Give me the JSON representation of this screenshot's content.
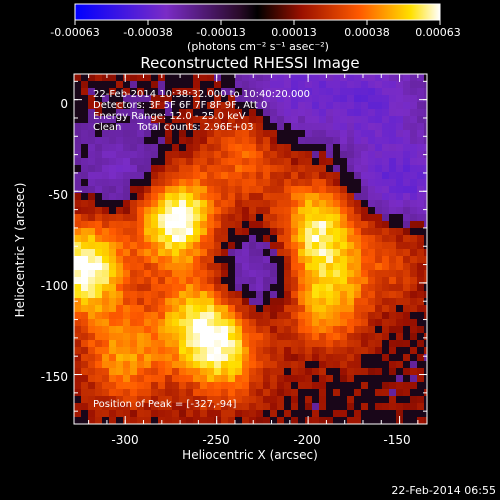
{
  "chart_data": {
    "type": "heatmap",
    "title": "Reconstructed RHESSI Image",
    "xlabel": "Heliocentric X (arcsec)",
    "ylabel": "Heliocentric Y (arcsec)",
    "xlim": [
      -328,
      -135
    ],
    "ylim": [
      -177,
      14
    ],
    "x_ticks": [
      -300,
      -250,
      -200,
      -150
    ],
    "y_ticks": [
      0,
      -50,
      -100,
      -150
    ],
    "colorbar": {
      "min": -0.00063,
      "max": 0.00063,
      "tick_labels": [
        "-0.00063",
        "-0.00038",
        "-0.00013",
        "0.00013",
        "0.00038",
        "0.00063"
      ],
      "unit_label": "(photons cm⁻² s⁻¹ asec⁻²)",
      "colormap": [
        "#0000ff",
        "#7a2cc6",
        "#2a0a2a",
        "#000000",
        "#9a1000",
        "#ff5a00",
        "#ffe000",
        "#ffffff"
      ]
    },
    "annotations": {
      "time": "22-Feb-2014 10:38:32.000 to 10:40:20.000",
      "detectors": "Detectors: 3F 5F 6F 7F 8F 9F, Att 0",
      "energy": "Energy Range: 12.0 - 25.0 keV",
      "clean": "Clean     Total counts: 2.96E+03",
      "peak": "Position of Peak = [-327,-94]"
    },
    "peak_position": [
      -327,
      -94
    ],
    "emission_blobs": [
      {
        "x": -272,
        "y": -65,
        "intensity": 1.0
      },
      {
        "x": -322,
        "y": -92,
        "intensity": 0.95
      },
      {
        "x": -260,
        "y": -120,
        "intensity": 0.7
      },
      {
        "x": -245,
        "y": -140,
        "intensity": 0.6
      },
      {
        "x": -195,
        "y": -70,
        "intensity": 0.8
      },
      {
        "x": -190,
        "y": -110,
        "intensity": 0.65
      },
      {
        "x": -300,
        "y": -140,
        "intensity": 0.55
      },
      {
        "x": -155,
        "y": -85,
        "intensity": 0.3
      },
      {
        "x": -235,
        "y": -30,
        "intensity": 0.4
      }
    ],
    "negative_regions": [
      {
        "x": -150,
        "y": -45,
        "intensity": 0.7
      },
      {
        "x": -210,
        "y": 5,
        "intensity": 0.55
      },
      {
        "x": -165,
        "y": 0,
        "intensity": 0.6
      },
      {
        "x": -230,
        "y": -95,
        "intensity": 0.5
      },
      {
        "x": -300,
        "y": -40,
        "intensity": 0.45
      }
    ]
  },
  "footer_timestamp": "22-Feb-2014 06:55"
}
